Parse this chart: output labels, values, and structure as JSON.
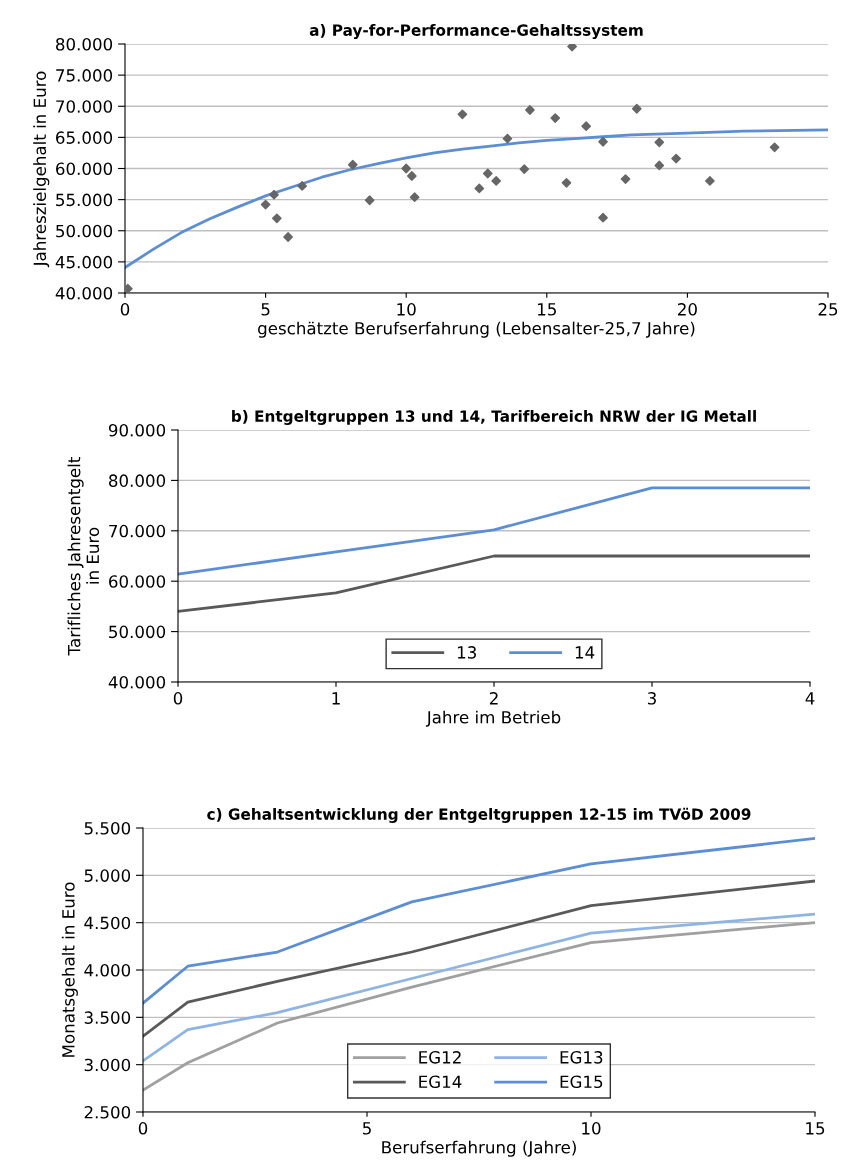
{
  "chart_data": [
    {
      "type": "scatter",
      "title": "a) Pay-for-Performance-Gehaltssystem",
      "xlabel": "geschätzte Berufserfahrung (Lebensalter-25,7 Jahre)",
      "ylabel": "Jahreszielgehalt in Euro",
      "xlim": [
        0,
        25
      ],
      "xticks": [
        0,
        5,
        10,
        15,
        20,
        25
      ],
      "ylim": [
        40000,
        80000
      ],
      "yticks": [
        {
          "value": 40000,
          "label": "40.000"
        },
        {
          "value": 45000,
          "label": "45.000"
        },
        {
          "value": 50000,
          "label": "50.000"
        },
        {
          "value": 55000,
          "label": "55.000"
        },
        {
          "value": 60000,
          "label": "60.000"
        },
        {
          "value": 65000,
          "label": "65.000"
        },
        {
          "value": 70000,
          "label": "70.000"
        },
        {
          "value": 75000,
          "label": "75.000"
        },
        {
          "value": 80000,
          "label": "80.000"
        }
      ],
      "grid": "y",
      "legend": false,
      "series": [
        {
          "type": "scatter",
          "marker": "diamond",
          "color": "#666666",
          "x": [
            0.1,
            5.0,
            5.3,
            5.4,
            5.8,
            6.3,
            8.1,
            8.7,
            10.0,
            10.2,
            10.3,
            12.0,
            12.6,
            12.9,
            13.2,
            13.6,
            14.2,
            14.4,
            15.3,
            15.7,
            15.9,
            16.4,
            17.0,
            17.0,
            17.8,
            18.2,
            19.0,
            19.0,
            19.6,
            20.8,
            23.1
          ],
          "values": [
            40700,
            54200,
            55800,
            52000,
            49000,
            57200,
            60600,
            54900,
            60000,
            58800,
            55400,
            68700,
            56800,
            59200,
            58000,
            64800,
            59900,
            69400,
            68100,
            57700,
            79600,
            66800,
            64300,
            52100,
            58300,
            69600,
            60500,
            64200,
            61600,
            58000,
            63400
          ]
        },
        {
          "type": "line",
          "color": "#5b8ed6",
          "x": [
            0,
            1,
            2,
            3,
            4,
            5,
            6,
            7,
            8,
            9,
            10,
            11,
            12,
            13,
            14,
            15,
            16,
            17,
            18,
            20,
            22,
            25
          ],
          "values": [
            44100,
            47000,
            49700,
            51900,
            53800,
            55600,
            57100,
            58600,
            59800,
            60800,
            61700,
            62500,
            63100,
            63600,
            64100,
            64500,
            64800,
            65100,
            65400,
            65700,
            66000,
            66200
          ]
        }
      ]
    },
    {
      "type": "line",
      "title": "b) Entgeltgruppen 13 und 14, Tarifbereich NRW der IG Metall",
      "xlabel": "Jahre im Betrieb",
      "ylabel": "Tarifliches Jahresentgelt\nin Euro",
      "x": [
        0,
        1,
        2,
        3,
        4
      ],
      "xlim": [
        0,
        4
      ],
      "xticks": [
        0,
        1,
        2,
        3,
        4
      ],
      "ylim": [
        40000,
        90000
      ],
      "yticks": [
        {
          "value": 40000,
          "label": "40.000"
        },
        {
          "value": 50000,
          "label": "50.000"
        },
        {
          "value": 60000,
          "label": "60.000"
        },
        {
          "value": 70000,
          "label": "70.000"
        },
        {
          "value": 80000,
          "label": "80.000"
        },
        {
          "value": 90000,
          "label": "90.000"
        }
      ],
      "grid": "y",
      "legend": "bottom",
      "marker": "none",
      "series": [
        {
          "name": "13",
          "color": "#595959",
          "values": [
            54000,
            57700,
            65000,
            65000,
            65000
          ]
        },
        {
          "name": "14",
          "color": "#5b8ed6",
          "values": [
            61400,
            65800,
            70200,
            78500,
            78500
          ]
        }
      ]
    },
    {
      "type": "line",
      "title": "c) Gehaltsentwicklung der Entgeltgruppen 12-15 im TVöD 2009",
      "xlabel": "Berufserfahrung (Jahre)",
      "ylabel": "Monatsgehalt in Euro",
      "x": [
        0,
        1,
        3,
        6,
        10,
        15
      ],
      "xlim": [
        0,
        15
      ],
      "xticks": [
        0,
        5,
        10,
        15
      ],
      "ylim": [
        2500,
        5500
      ],
      "yticks": [
        {
          "value": 2500,
          "label": "2.500"
        },
        {
          "value": 3000,
          "label": "3.000"
        },
        {
          "value": 3500,
          "label": "3.500"
        },
        {
          "value": 4000,
          "label": "4.000"
        },
        {
          "value": 4500,
          "label": "4.500"
        },
        {
          "value": 5000,
          "label": "5.000"
        },
        {
          "value": 5500,
          "label": "5.500"
        }
      ],
      "grid": "y",
      "legend": "bottom",
      "marker": "none",
      "series": [
        {
          "name": "EG12",
          "color": "#a0a0a0",
          "values": [
            2730,
            3020,
            3440,
            3820,
            4290,
            4500
          ]
        },
        {
          "name": "EG13",
          "color": "#8eb4e3",
          "values": [
            3040,
            3370,
            3550,
            3910,
            4390,
            4590
          ]
        },
        {
          "name": "EG14",
          "color": "#595959",
          "values": [
            3300,
            3660,
            3880,
            4190,
            4680,
            4940
          ]
        },
        {
          "name": "EG15",
          "color": "#5b8ed6",
          "values": [
            3650,
            4040,
            4190,
            4720,
            5120,
            5390
          ]
        }
      ]
    }
  ]
}
